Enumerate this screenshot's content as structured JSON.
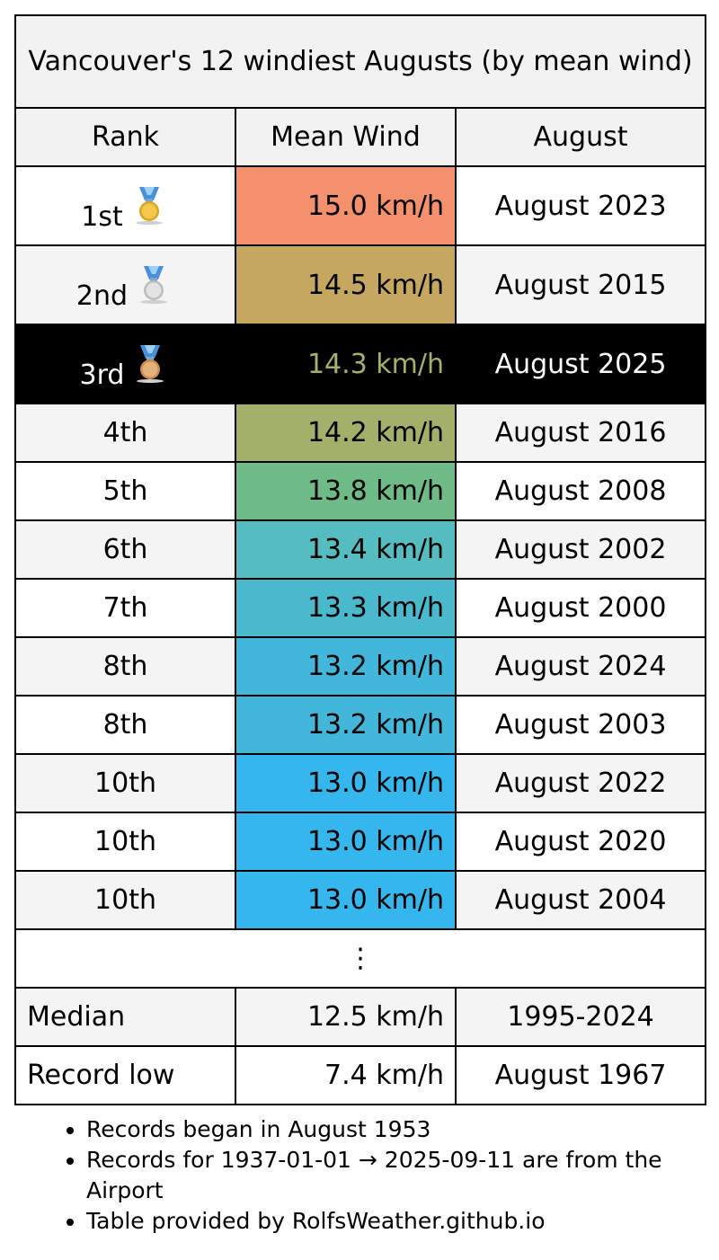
{
  "table": {
    "title": "Vancouver's 12 windiest Augusts (by mean wind)",
    "headers": {
      "rank": "Rank",
      "wind": "Mean Wind",
      "month": "August"
    },
    "rows": [
      {
        "rank": "1st",
        "wind": "15.0 km/h",
        "month": "August 2023",
        "medal": "gold-medal-icon",
        "color": "#f4906c"
      },
      {
        "rank": "2nd",
        "wind": "14.5 km/h",
        "month": "August 2015",
        "medal": "silver-medal-icon",
        "color": "#c6a760"
      },
      {
        "rank": "3rd",
        "wind": "14.3 km/h",
        "month": "August 2025",
        "medal": "bronze-medal-icon",
        "highlight": true,
        "color": "#a3b069"
      },
      {
        "rank": "4th",
        "wind": "14.2 km/h",
        "month": "August 2016",
        "color": "#a3b069"
      },
      {
        "rank": "5th",
        "wind": "13.8 km/h",
        "month": "August 2008",
        "color": "#6fbb88"
      },
      {
        "rank": "6th",
        "wind": "13.4 km/h",
        "month": "August 2002",
        "color": "#55bcbf"
      },
      {
        "rank": "7th",
        "wind": "13.3 km/h",
        "month": "August 2000",
        "color": "#4ab9cc"
      },
      {
        "rank": "8th",
        "wind": "13.2 km/h",
        "month": "August 2024",
        "color": "#42b7da"
      },
      {
        "rank": "8th",
        "wind": "13.2 km/h",
        "month": "August 2003",
        "color": "#42b7da"
      },
      {
        "rank": "10th",
        "wind": "13.0 km/h",
        "month": "August 2022",
        "color": "#35b6ec"
      },
      {
        "rank": "10th",
        "wind": "13.0 km/h",
        "month": "August 2020",
        "color": "#35b6ec"
      },
      {
        "rank": "10th",
        "wind": "13.0 km/h",
        "month": "August 2004",
        "color": "#35b6ec"
      }
    ],
    "ellipsis": "⋮",
    "median": {
      "label": "Median",
      "wind": "12.5 km/h",
      "month": "1995-2024"
    },
    "record_low": {
      "label": "Record low",
      "wind": "7.4 km/h",
      "month": "August 1967"
    }
  },
  "notes": [
    "Records began in August 1953",
    "Records for 1937-01-01 → 2025-09-11 are from the Airport",
    "Table provided by RolfsWeather.github.io"
  ]
}
